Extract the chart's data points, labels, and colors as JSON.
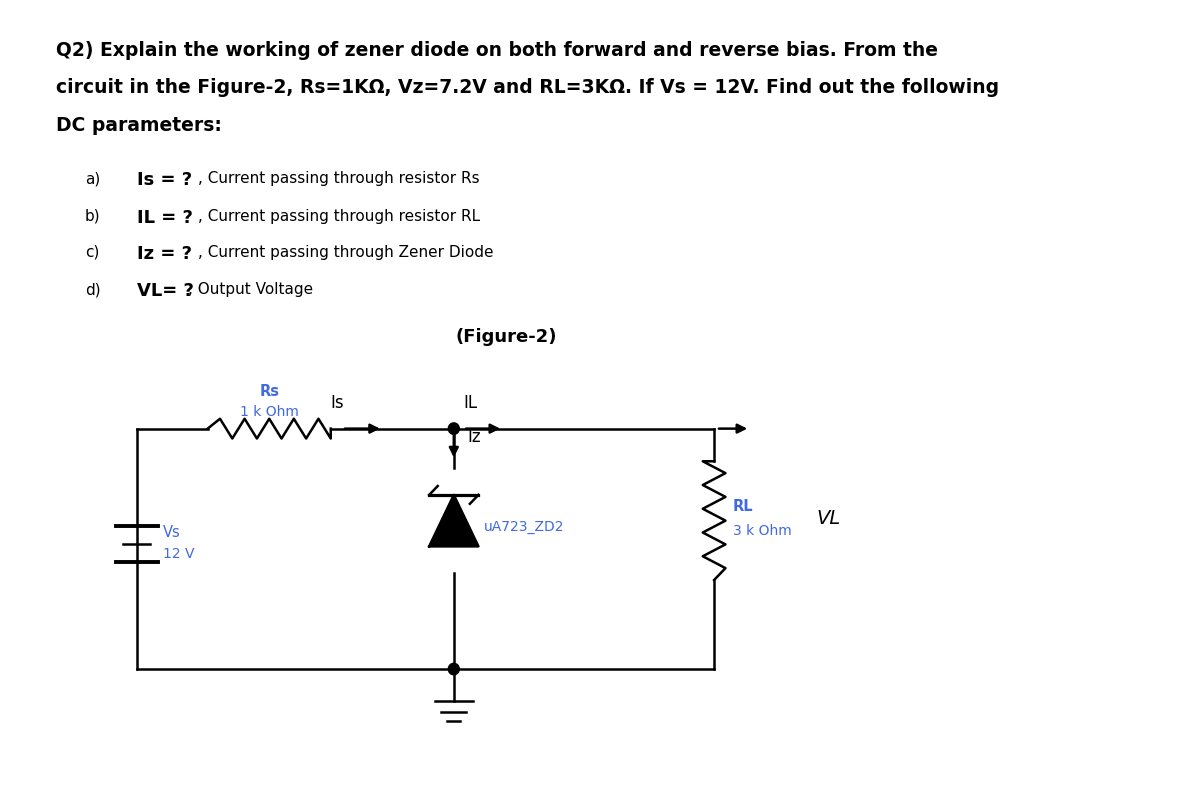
{
  "figure_title": "(Figure-2)",
  "blue_color": "#4169E1",
  "black_color": "#000000",
  "white_bg": "#ffffff",
  "line1": "Q2) Explain the working of zener diode on both forward and reverse bias. From the",
  "line2": "circuit in the Figure-2, Rs=1KΩ, Vz=7.2V and RL=3KΩ. If Vs = 12V. Find out the following",
  "line3": "DC parameters:",
  "items_label": [
    "a)",
    "b)",
    "c)",
    "d)"
  ],
  "items_bold": [
    "Is = ?",
    "IL = ?",
    "Iz = ?",
    "VL= ?"
  ],
  "items_rest": [
    ", Current passing through resistor Rs",
    ", Current passing through resistor RL",
    ", Current passing through Zener Diode",
    ", Output Voltage"
  ],
  "rs_label1": "Rs",
  "rs_label2": "1 k Ohm",
  "rl_label1": "RL",
  "rl_label2": "3 k Ohm",
  "vs_label1": "Vs",
  "vs_label2": "12 V",
  "zd_label": "uA723_ZD2",
  "is_label": "Is",
  "il_label": "IL",
  "iz_label": "Iz",
  "vl_label": "VL"
}
